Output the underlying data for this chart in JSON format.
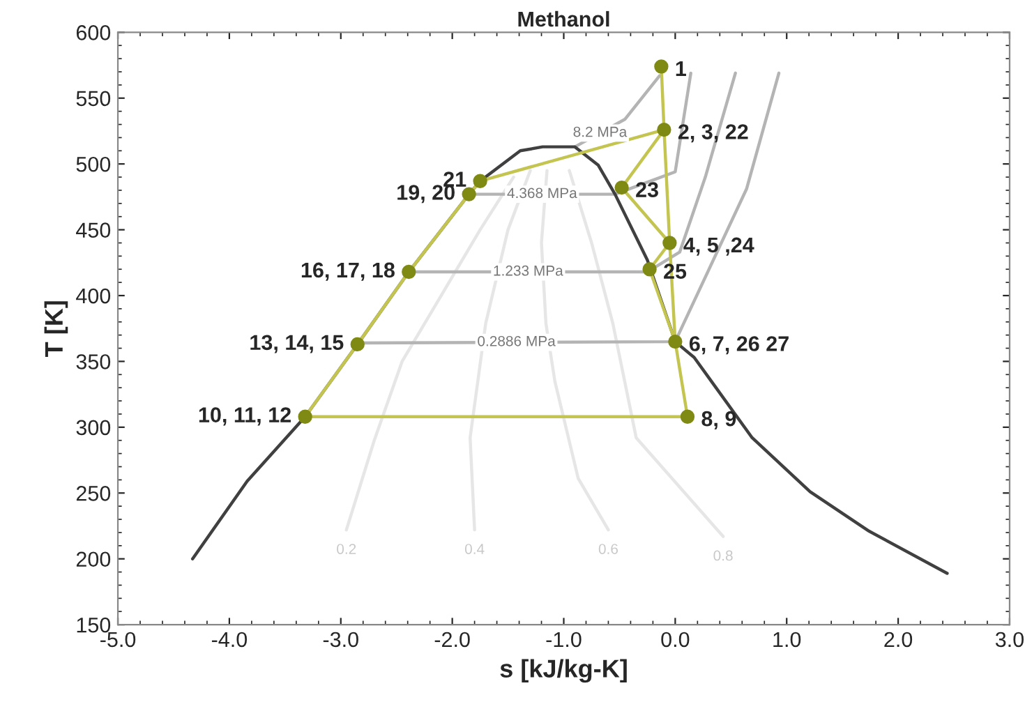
{
  "chart_data": {
    "type": "line",
    "title": "Methanol",
    "xlabel": "s [kJ/kg-K]",
    "ylabel": "T [K]",
    "xlim": [
      -5,
      3
    ],
    "xticks": [
      {
        "value": -5,
        "label": "-5.0"
      },
      {
        "value": -4,
        "label": "-4.0"
      },
      {
        "value": -3,
        "label": "-3.0"
      },
      {
        "value": -2,
        "label": "-2.0"
      },
      {
        "value": -1,
        "label": "-1.0"
      },
      {
        "value": 0,
        "label": "0.0"
      },
      {
        "value": 1,
        "label": "1.0"
      },
      {
        "value": 2,
        "label": "2.0"
      },
      {
        "value": 3,
        "label": "3.0"
      }
    ],
    "ylim": [
      150,
      600
    ],
    "yticks": [
      150,
      200,
      250,
      300,
      350,
      400,
      450,
      500,
      550,
      600
    ],
    "grid": false,
    "legend": false,
    "series": [
      {
        "name": "0.2",
        "color": "#e6e6e6",
        "x": [
          -2.95,
          -2.7,
          -2.45,
          -2.1,
          -1.75,
          -1.45
        ],
        "values": [
          222,
          290,
          350,
          400,
          450,
          490
        ]
      },
      {
        "name": "0.4",
        "color": "#e6e6e6",
        "x": [
          -1.8,
          -1.84,
          -1.7,
          -1.5,
          -1.3
        ],
        "values": [
          222,
          292,
          379,
          450,
          495
        ]
      },
      {
        "name": "0.6",
        "color": "#e6e6e6",
        "x": [
          -0.6,
          -0.87,
          -1.08,
          -1.16,
          -1.2,
          -1.15
        ],
        "values": [
          222,
          261,
          335,
          379,
          440,
          495
        ]
      },
      {
        "name": "0.8",
        "color": "#e6e6e6",
        "x": [
          0.43,
          -0.35,
          -0.56,
          -0.75,
          -0.95
        ],
        "values": [
          217,
          292,
          379,
          440,
          495
        ]
      },
      {
        "name": "8.2 MPa",
        "color": "#b4b4b4",
        "x": [
          -0.9,
          -0.45,
          -0.14
        ],
        "values": [
          513,
          534,
          567
        ]
      },
      {
        "name": "4.368 MPa",
        "color": "#b4b4b4",
        "x": [
          -1.85,
          -0.54,
          0.0,
          0.14
        ],
        "values": [
          477,
          477,
          494,
          569
        ]
      },
      {
        "name": "1.233 MPa",
        "color": "#b4b4b4",
        "x": [
          -2.39,
          -0.25,
          0.04,
          0.27,
          0.54
        ],
        "values": [
          418,
          418,
          433,
          490,
          569
        ]
      },
      {
        "name": "0.2886 MPa",
        "color": "#b4b4b4",
        "x": [
          -2.85,
          0.0,
          0.06,
          0.64,
          0.93
        ],
        "values": [
          364,
          365,
          376,
          481,
          569
        ]
      },
      {
        "color": "#404040",
        "x": [
          -4.33,
          -3.84,
          -3.32,
          -2.85,
          -2.39,
          -1.85,
          -1.75,
          -1.39,
          -1.19,
          -0.9,
          -0.69,
          -0.54,
          -0.25,
          0.0,
          0.17,
          0.69,
          1.21,
          1.74,
          2.44
        ],
        "values": [
          200,
          259,
          308,
          363,
          418,
          477,
          487,
          510,
          513,
          513,
          499,
          477,
          427,
          365,
          353,
          292,
          251,
          221,
          189
        ]
      },
      {
        "color": "#c4c450",
        "x": [
          -0.125,
          -0.1,
          -0.05,
          0.0,
          0.11,
          -3.32,
          -2.85,
          -2.39,
          -1.85,
          -1.75,
          -0.1
        ],
        "values": [
          574,
          526,
          440,
          365,
          308,
          308,
          363,
          418,
          477,
          487,
          526
        ]
      },
      {
        "color": "#c4c450",
        "x": [
          -0.1,
          -0.48,
          -0.05,
          -0.23,
          0.0
        ],
        "values": [
          526,
          482,
          440,
          420,
          365
        ]
      },
      {
        "type": "scatter",
        "color": "#7f8a14",
        "x": [
          -0.125,
          -0.1,
          -1.75,
          -1.85,
          -0.48,
          -0.05,
          -0.23,
          -2.39,
          -2.85,
          0.0,
          -3.32,
          0.11
        ],
        "values": [
          574,
          526,
          487,
          477,
          482,
          440,
          420,
          418,
          363,
          365,
          308,
          308
        ]
      }
    ],
    "annotations": [
      {
        "text": "1",
        "x": -0.125,
        "y": 574
      },
      {
        "text": "2, 3, 22",
        "x": -0.1,
        "y": 526
      },
      {
        "text": "21",
        "x": -1.75,
        "y": 487
      },
      {
        "text": "19, 20",
        "x": -1.85,
        "y": 477
      },
      {
        "text": "23",
        "x": -0.48,
        "y": 482
      },
      {
        "text": "4, 5 ,24",
        "x": -0.05,
        "y": 440
      },
      {
        "text": "25",
        "x": -0.23,
        "y": 420
      },
      {
        "text": "16, 17, 18",
        "x": -2.39,
        "y": 418
      },
      {
        "text": "13, 14, 15",
        "x": -2.85,
        "y": 363
      },
      {
        "text": "6, 7, 26 27",
        "x": 0.0,
        "y": 365
      },
      {
        "text": "10, 11, 12",
        "x": -3.32,
        "y": 308
      },
      {
        "text": "8, 9",
        "x": 0.11,
        "y": 308
      }
    ]
  }
}
